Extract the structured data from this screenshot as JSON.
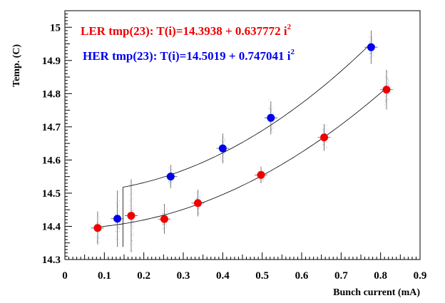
{
  "chart_data": {
    "type": "scatter",
    "xlabel": "Bunch current (mA)",
    "ylabel": "Temp. (C)",
    "xlim": [
      0,
      0.9
    ],
    "ylim": [
      14.3,
      15.05
    ],
    "x_ticks": [
      "0",
      "0.1",
      "0.2",
      "0.3",
      "0.4",
      "0.5",
      "0.6",
      "0.7",
      "0.8",
      "0.9"
    ],
    "y_ticks": [
      "14.3",
      "14.4",
      "14.5",
      "14.6",
      "14.7",
      "14.8",
      "14.9",
      "15"
    ],
    "grid": false,
    "legend_position": "top-left",
    "series": [
      {
        "name": "LER tmp(23): T(i)=14.3938 + 0.637772 i",
        "name_superscript": "2",
        "color": "#ee0000",
        "fit": {
          "intercept": 14.3938,
          "coef": 0.637772,
          "x_range": [
            0.08,
            0.815
          ]
        },
        "points": [
          {
            "x": 0.083,
            "y": 14.395,
            "err": 0.05
          },
          {
            "x": 0.168,
            "y": 14.432,
            "err": 0.11
          },
          {
            "x": 0.252,
            "y": 14.422,
            "err": 0.045
          },
          {
            "x": 0.337,
            "y": 14.47,
            "err": 0.04
          },
          {
            "x": 0.497,
            "y": 14.555,
            "err": 0.025
          },
          {
            "x": 0.657,
            "y": 14.668,
            "err": 0.04
          },
          {
            "x": 0.815,
            "y": 14.812,
            "err": 0.06
          }
        ]
      },
      {
        "name": "HER tmp(23): T(i)=14.5019 + 0.747041 i",
        "name_superscript": "2",
        "color": "#0000ee",
        "fit": {
          "intercept": 14.5019,
          "coef": 0.747041,
          "x_range": [
            0.147,
            0.775
          ]
        },
        "points": [
          {
            "x": 0.133,
            "y": 14.423,
            "err": 0.085
          },
          {
            "x": 0.268,
            "y": 14.55,
            "err": 0.035
          },
          {
            "x": 0.4,
            "y": 14.635,
            "err": 0.045
          },
          {
            "x": 0.522,
            "y": 14.727,
            "err": 0.05
          },
          {
            "x": 0.776,
            "y": 14.94,
            "err": 0.05
          }
        ]
      }
    ]
  }
}
